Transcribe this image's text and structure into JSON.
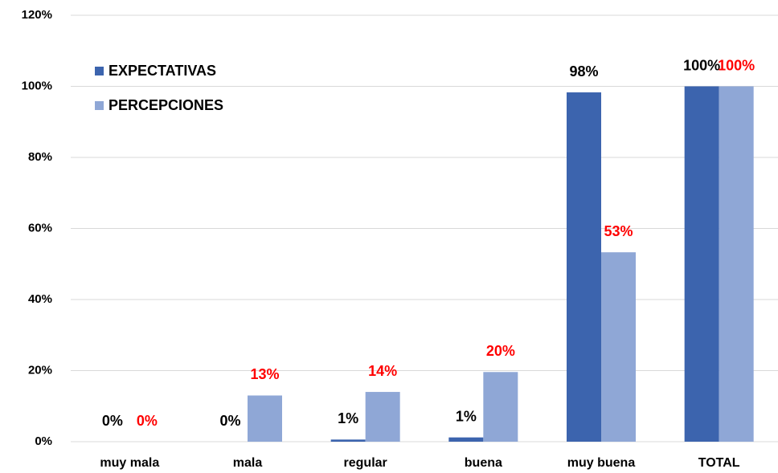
{
  "chart_data": {
    "type": "bar",
    "categories": [
      "muy mala",
      "mala",
      "regular",
      "buena",
      "muy buena",
      "TOTAL"
    ],
    "series": [
      {
        "name": "EXPECTATIVAS",
        "color": "#3c64ae",
        "label_color": "#000000",
        "values": [
          0,
          0,
          0.6,
          1.2,
          98.3,
          100
        ],
        "value_labels": [
          "0%",
          "0%",
          "1%",
          "1%",
          "98%",
          "100%"
        ]
      },
      {
        "name": "PERCEPCIONES",
        "color": "#8fa7d6",
        "label_color": "#ff0000",
        "values": [
          0,
          13,
          14,
          19.6,
          53.3,
          100
        ],
        "value_labels": [
          "0%",
          "13%",
          "14%",
          "20%",
          "53%",
          "100%"
        ]
      }
    ],
    "ylim": [
      0,
      120
    ],
    "yticks": [
      {
        "value": 0,
        "label": "0%"
      },
      {
        "value": 20,
        "label": "20%"
      },
      {
        "value": 40,
        "label": "40%"
      },
      {
        "value": 60,
        "label": "60%"
      },
      {
        "value": 80,
        "label": "80%"
      },
      {
        "value": 100,
        "label": "100%"
      },
      {
        "value": 120,
        "label": "120%"
      }
    ],
    "grid": true,
    "legend": "top-left"
  }
}
